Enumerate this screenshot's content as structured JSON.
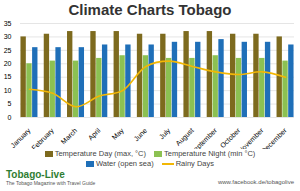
{
  "chart_data": {
    "type": "bar",
    "title": "Climate Charts Tobago",
    "categories": [
      "January",
      "February",
      "March",
      "April",
      "May",
      "June",
      "July",
      "August",
      "September",
      "October",
      "November",
      "December"
    ],
    "series": [
      {
        "name": "Temperature Day (max, °C)",
        "type": "bar",
        "color": "#7d6a1e",
        "values": [
          30,
          31,
          32,
          32,
          32,
          31,
          31,
          32,
          32,
          31,
          31,
          30
        ]
      },
      {
        "name": "Temperature Night (min °C)",
        "type": "bar",
        "color": "#8cc152",
        "values": [
          20,
          21,
          21,
          22,
          23,
          23,
          22,
          22,
          23,
          22,
          22,
          21
        ]
      },
      {
        "name": "Water (open sea)",
        "type": "bar",
        "color": "#1f6fb8",
        "values": [
          26,
          26,
          26,
          27,
          27,
          27,
          28,
          28,
          29,
          28,
          28,
          27
        ]
      },
      {
        "name": "Rainy Days",
        "type": "line",
        "color": "#f2b705",
        "values": [
          10.5,
          9,
          4,
          8,
          10,
          19,
          21,
          19,
          17,
          16,
          17,
          15
        ]
      }
    ],
    "ylim": [
      0,
      35
    ],
    "yticks": [
      0,
      5,
      10,
      15,
      20,
      25,
      30,
      35
    ],
    "grid": true,
    "legend": "bottom",
    "annotations": [
      "Tobago-Live",
      "The Tobago Magazine with Travel Guide",
      "www.facebook.de/tobagolive"
    ]
  }
}
